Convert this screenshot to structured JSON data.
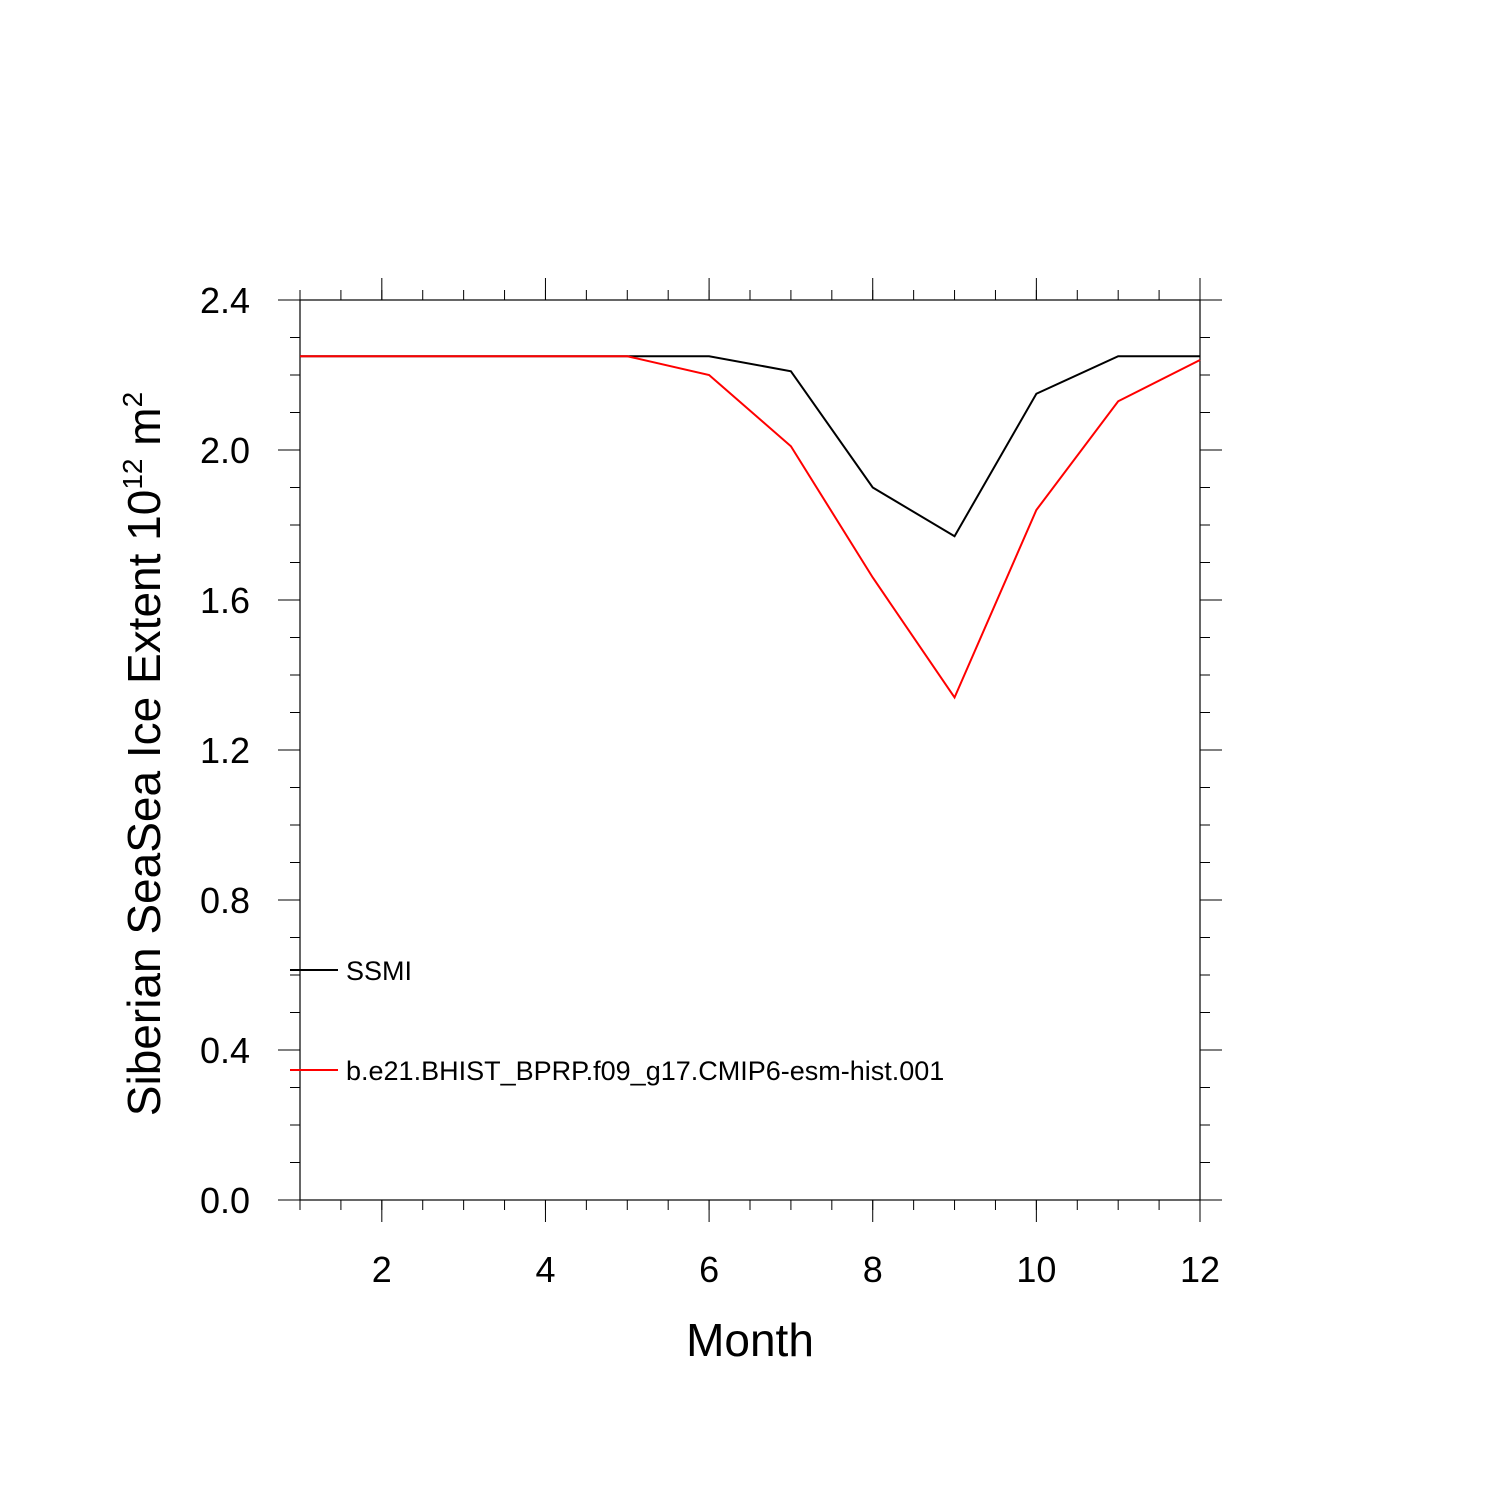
{
  "chart_data": {
    "type": "line",
    "xlabel": "Month",
    "ylabel": {
      "prefix": "Siberian SeaSea Ice Extent 10",
      "exponent": "12",
      "unit": " m",
      "unit_exponent": "2"
    },
    "xlim": [
      1,
      12
    ],
    "ylim": [
      0,
      2.4
    ],
    "x_ticks": [
      2,
      4,
      6,
      8,
      10,
      12
    ],
    "y_ticks": [
      0.0,
      0.4,
      0.8,
      1.2,
      1.6,
      2.0,
      2.4
    ],
    "y_tick_labels": [
      "0.0",
      "0.4",
      "0.8",
      "1.2",
      "1.6",
      "2.0",
      "2.4"
    ],
    "x_tick_labels": [
      "2",
      "4",
      "6",
      "8",
      "10",
      "12"
    ],
    "grid": false,
    "legend_position": "bottom-left",
    "x": [
      1,
      2,
      3,
      4,
      5,
      6,
      7,
      8,
      9,
      10,
      11,
      12
    ],
    "series": [
      {
        "name": "SSMI",
        "color": "#000000",
        "values": [
          2.25,
          2.25,
          2.25,
          2.25,
          2.25,
          2.25,
          2.21,
          1.9,
          1.77,
          2.15,
          2.25,
          2.25
        ]
      },
      {
        "name": "b.e21.BHIST_BPRP.f09_g17.CMIP6-esm-hist.001",
        "color": "#ff0000",
        "values": [
          2.25,
          2.25,
          2.25,
          2.25,
          2.25,
          2.2,
          2.01,
          1.66,
          1.34,
          1.84,
          2.13,
          2.24
        ]
      }
    ]
  }
}
